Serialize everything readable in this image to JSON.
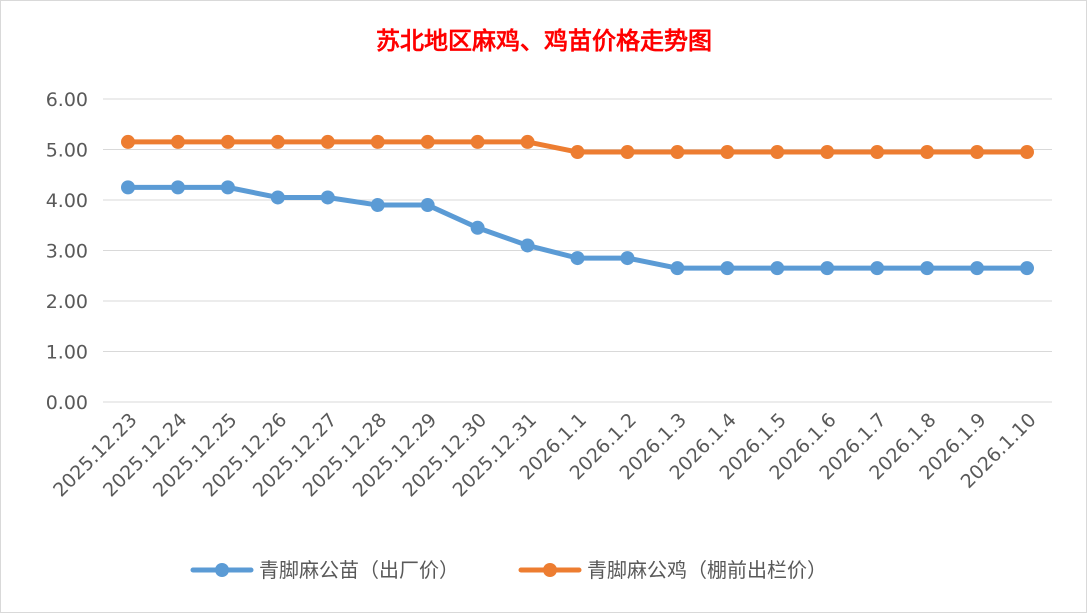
{
  "chart_data": {
    "type": "line",
    "title": "苏北地区麻鸡、鸡苗价格走势图",
    "xlabel": "",
    "ylabel": "",
    "ylim": [
      0,
      6
    ],
    "ytick_labels": [
      "0.00",
      "1.00",
      "2.00",
      "3.00",
      "4.00",
      "5.00",
      "6.00"
    ],
    "grid": true,
    "legend_position": "bottom",
    "categories": [
      "2025.12.23",
      "2025.12.24",
      "2025.12.25",
      "2025.12.26",
      "2025.12.27",
      "2025.12.28",
      "2025.12.29",
      "2025.12.30",
      "2025.12.31",
      "2026.1.1",
      "2026.1.2",
      "2026.1.3",
      "2026.1.4",
      "2026.1.5",
      "2026.1.6",
      "2026.1.7",
      "2026.1.8",
      "2026.1.9",
      "2026.1.10"
    ],
    "series": [
      {
        "name": "青脚麻公苗（出厂价）",
        "color": "#5b9bd5",
        "values": [
          4.25,
          4.25,
          4.25,
          4.05,
          4.05,
          3.9,
          3.9,
          3.45,
          3.1,
          2.85,
          2.85,
          2.65,
          2.65,
          2.65,
          2.65,
          2.65,
          2.65,
          2.65,
          2.65
        ]
      },
      {
        "name": "青脚麻公鸡（棚前出栏价）",
        "color": "#ed7d31",
        "values": [
          5.15,
          5.15,
          5.15,
          5.15,
          5.15,
          5.15,
          5.15,
          5.15,
          5.15,
          4.95,
          4.95,
          4.95,
          4.95,
          4.95,
          4.95,
          4.95,
          4.95,
          4.95,
          4.95
        ]
      }
    ]
  }
}
